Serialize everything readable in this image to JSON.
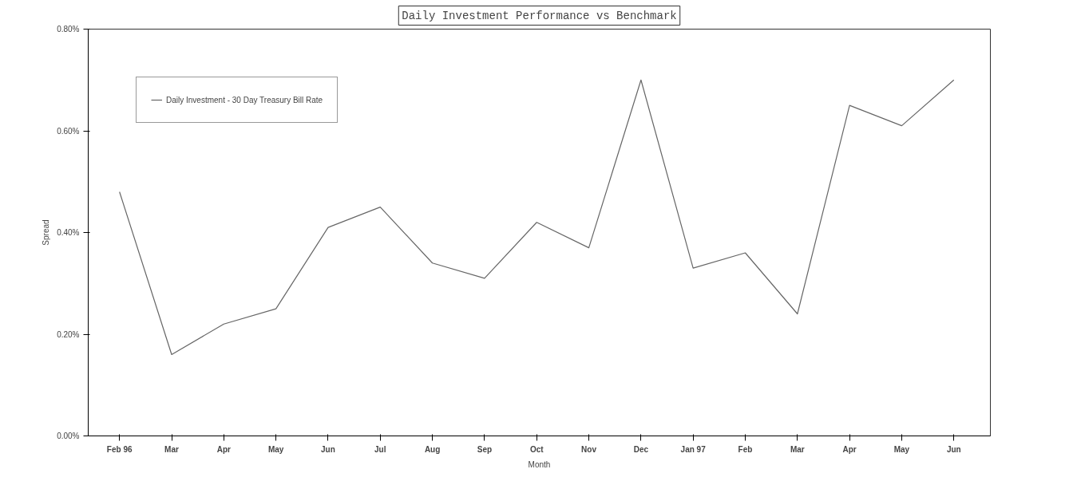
{
  "chart_data": {
    "type": "line",
    "title": "Daily Investment Performance vs Benchmark",
    "xlabel": "Month",
    "ylabel": "Spread",
    "categories": [
      "Feb 96",
      "Mar",
      "Apr",
      "May",
      "Jun",
      "Jul",
      "Aug",
      "Sep",
      "Oct",
      "Nov",
      "Dec",
      "Jan 97",
      "Feb",
      "Mar",
      "Apr",
      "May",
      "Jun"
    ],
    "series": [
      {
        "name": "Daily Investment - 30 Day Treasury Bill Rate",
        "color": "#666666",
        "values": [
          0.48,
          0.16,
          0.22,
          0.25,
          0.41,
          0.45,
          0.34,
          0.31,
          0.42,
          0.37,
          0.7,
          0.33,
          0.36,
          0.24,
          0.65,
          0.61,
          0.7
        ]
      }
    ],
    "ylim": [
      0,
      0.8
    ],
    "yticks": [
      {
        "value": 0,
        "label": "0.00%"
      },
      {
        "value": 0.2,
        "label": "0.20%"
      },
      {
        "value": 0.4,
        "label": "0.40%"
      },
      {
        "value": 0.6,
        "label": "0.60%"
      },
      {
        "value": 0.8,
        "label": "0.80%"
      }
    ],
    "grid": false,
    "legend": "top left",
    "marker": "none",
    "line_style": "solid"
  }
}
